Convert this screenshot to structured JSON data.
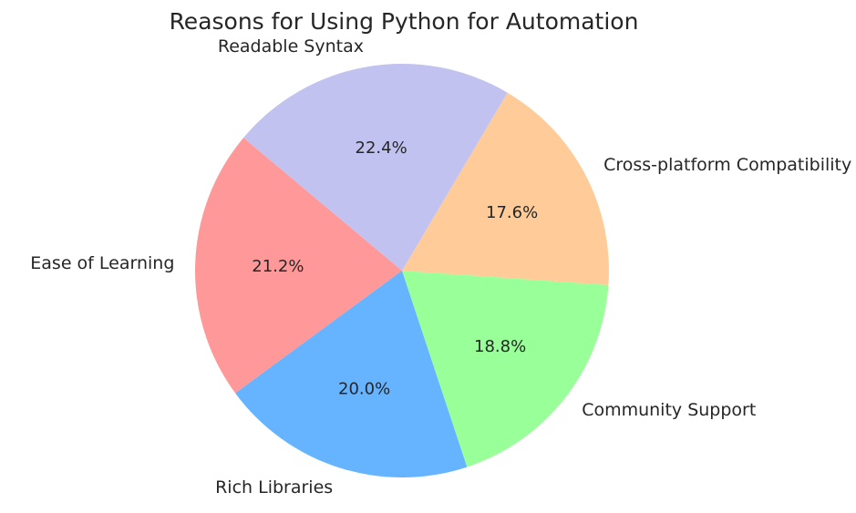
{
  "title": "Reasons for Using Python for Automation",
  "chart_data": {
    "type": "pie",
    "title": "Reasons for Using Python for Automation",
    "slices": [
      {
        "label": "Ease of Learning",
        "value": 21.2,
        "pct_label": "21.2%",
        "color": "#ff9999"
      },
      {
        "label": "Rich Libraries",
        "value": 20.0,
        "pct_label": "20.0%",
        "color": "#66b3ff"
      },
      {
        "label": "Community Support",
        "value": 18.8,
        "pct_label": "18.8%",
        "color": "#99ff99"
      },
      {
        "label": "Cross-platform Compatibility",
        "value": 17.6,
        "pct_label": "17.6%",
        "color": "#ffcc99"
      },
      {
        "label": "Readable Syntax",
        "value": 22.4,
        "pct_label": "22.4%",
        "color": "#c2c2f0"
      }
    ],
    "layout": {
      "start_angle_deg": 140,
      "counterclockwise": true,
      "pct_distance": 0.6,
      "label_distance": 1.1,
      "legend": "none",
      "grid": "off",
      "background": "#ffffff",
      "text_color": "#262626"
    }
  }
}
